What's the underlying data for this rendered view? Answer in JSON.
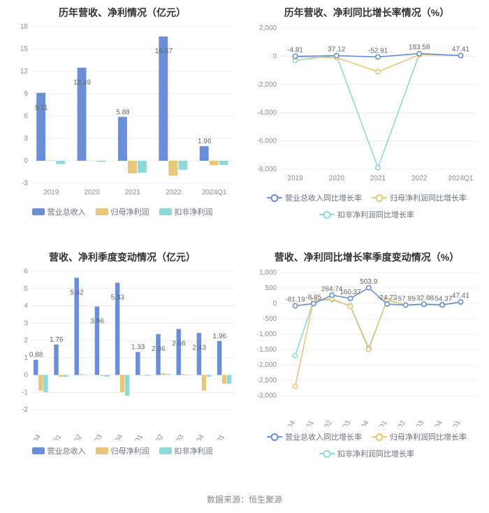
{
  "global": {
    "background_color": "#ffffff",
    "grid_color": "#e9ecef",
    "axis_text_color": "#8a8f99",
    "source_text": "数据来源：恒生聚源",
    "colors": {
      "revenue": "#6a8fd8",
      "net_profit": "#e8c77a",
      "non_recurring": "#8fd9d9"
    },
    "title_fontsize": 14,
    "label_fontsize": 10
  },
  "chart1": {
    "type": "bar",
    "title": "历年营收、净利情况（亿元）",
    "categories": [
      "2019",
      "2020",
      "2021",
      "2022",
      "2024Q1"
    ],
    "series": [
      {
        "key": "revenue",
        "name": "营业总收入",
        "color": "#6a8fd8",
        "values": [
          9.11,
          12.49,
          5.88,
          16.67,
          1.96
        ]
      },
      {
        "key": "net_profit",
        "name": "归母净利润",
        "color": "#e8c77a",
        "values": [
          0.05,
          0.02,
          -1.7,
          -2.0,
          -0.6
        ]
      },
      {
        "key": "non_recurring",
        "name": "扣非净利润",
        "color": "#8fd9d9",
        "values": [
          -0.45,
          -0.15,
          -1.6,
          -1.2,
          -0.55
        ]
      }
    ],
    "value_labels": [
      9.11,
      12.49,
      5.88,
      16.67,
      1.96
    ],
    "ylim": [
      -3,
      18
    ],
    "ytick_step": 3,
    "bar_group_width": 0.72
  },
  "chart2": {
    "type": "line",
    "title": "历年营收、净利同比增长率情况（%）",
    "categories": [
      "2019",
      "2020",
      "2021",
      "2022",
      "2024Q1"
    ],
    "series": [
      {
        "key": "revenue",
        "name": "营业总收入同比增长率",
        "color": "#6a8fd8",
        "values": [
          -4.81,
          37.12,
          -52.91,
          183.58,
          47.41
        ]
      },
      {
        "key": "net_profit",
        "name": "归母净利润同比增长率",
        "color": "#e8c77a",
        "values": [
          -50,
          -100,
          -1100,
          100,
          50
        ]
      },
      {
        "key": "non_recurring",
        "name": "扣非净利润同比增长率",
        "color": "#8fd9d9",
        "values": [
          -300,
          50,
          -7900,
          150,
          40
        ]
      }
    ],
    "point_labels": [
      -4.81,
      37.12,
      -52.91,
      183.58,
      47.41
    ],
    "ylim": [
      -8000,
      2000
    ],
    "ytick_step": 2000
  },
  "chart3": {
    "type": "bar",
    "title": "营收、净利季度变动情况（亿元）",
    "categories": [
      "2021Q4",
      "2022Q1",
      "2022Q2",
      "2022Q3",
      "2022Q4",
      "2023Q1",
      "2023Q2",
      "2023Q3",
      "2023Q4",
      "2024Q1"
    ],
    "series": [
      {
        "key": "revenue",
        "name": "营业总收入",
        "color": "#6a8fd8",
        "values": [
          0.88,
          1.76,
          5.62,
          3.96,
          5.33,
          1.33,
          2.36,
          2.66,
          2.43,
          1.96
        ]
      },
      {
        "key": "net_profit",
        "name": "归母净利润",
        "color": "#e8c77a",
        "values": [
          -0.9,
          -0.1,
          0.05,
          -0.05,
          -1.0,
          0.02,
          0.1,
          0.05,
          -0.9,
          -0.5
        ]
      },
      {
        "key": "non_recurring",
        "name": "扣非净利润",
        "color": "#8fd9d9",
        "values": [
          -1.0,
          -0.1,
          0.02,
          -0.1,
          -1.2,
          -0.05,
          0.05,
          0.0,
          -0.1,
          -0.5
        ]
      }
    ],
    "value_labels": [
      0.88,
      1.76,
      5.62,
      3.96,
      5.33,
      1.33,
      2.36,
      2.66,
      2.43,
      1.96
    ],
    "ylim": [
      -2,
      6
    ],
    "ytick_step": 1,
    "bar_group_width": 0.72,
    "x_rotate": true
  },
  "chart4": {
    "type": "line",
    "title": "营收、净利同比增长率季度变动情况（%）",
    "categories": [
      "2021Q4",
      "2022Q1",
      "2022Q2",
      "2022Q3",
      "2022Q4",
      "2023Q1",
      "2023Q2",
      "2023Q3",
      "2023Q4",
      "2024Q1"
    ],
    "series": [
      {
        "key": "revenue",
        "name": "营业总收入同比增长率",
        "color": "#6a8fd8",
        "values": [
          -81.19,
          -8.85,
          264.74,
          160.37,
          503.9,
          -24.72,
          -57.95,
          -32.88,
          -54.37,
          47.41
        ]
      },
      {
        "key": "net_profit",
        "name": "归母净利润同比增长率",
        "color": "#e8c77a",
        "values": [
          -2700,
          100,
          150,
          -100,
          -1500,
          120,
          -60,
          -30,
          -50,
          40
        ]
      },
      {
        "key": "non_recurring",
        "name": "扣非净利润同比增长率",
        "color": "#8fd9d9",
        "values": [
          -1700,
          80,
          120,
          -80,
          -1450,
          100,
          -55,
          -25,
          -40,
          35
        ]
      }
    ],
    "point_labels": [
      -81.19,
      -8.85,
      264.74,
      160.37,
      503.9,
      -24.72,
      -57.95,
      -32.88,
      -54.37,
      47.41
    ],
    "ylim": [
      -3000,
      1000
    ],
    "ytick_step": 500,
    "x_rotate": true
  }
}
